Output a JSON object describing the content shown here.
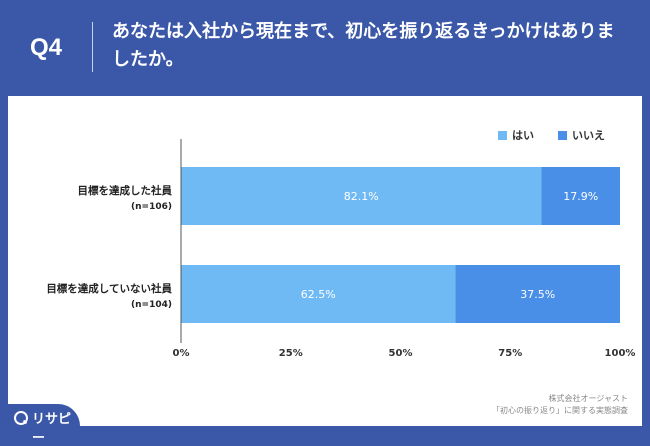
{
  "header": {
    "question_no": "Q4",
    "question_text": "あなたは入社から現在まで、初心を振り返るきっかけはありましたか。"
  },
  "footer": {
    "source_line1": "株式会社オージャスト",
    "source_line2": "「初心の振り返り」に関する実態調査",
    "logo_text": "リサピー"
  },
  "chart_data": {
    "type": "bar",
    "orientation": "horizontal",
    "stacked": true,
    "categories": [
      {
        "label": "目標を達成した社員",
        "n": "(n=106)"
      },
      {
        "label": "目標を達成していない社員",
        "n": "(n=104)"
      }
    ],
    "series": [
      {
        "name": "はい",
        "values": [
          82.1,
          62.5
        ],
        "labels": [
          "82.1%",
          "62.5%"
        ],
        "color": "#6fb9f4"
      },
      {
        "name": "いいえ",
        "values": [
          17.9,
          37.5
        ],
        "labels": [
          "17.9%",
          "37.5%"
        ],
        "color": "#4a8fe7"
      }
    ],
    "xlim": [
      0,
      100
    ],
    "xticks": [
      "0%",
      "25%",
      "50%",
      "75%",
      "100%"
    ],
    "legend_position": "top-right",
    "grid": false
  }
}
